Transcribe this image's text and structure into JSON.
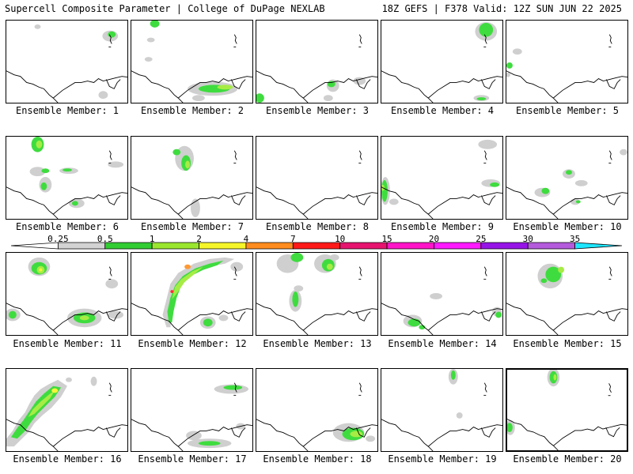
{
  "header": {
    "left": "Supercell Composite Parameter | College of DuPage NEXLAB",
    "right": "18Z GEFS | F378 Valid: 12Z SUN JUN 22 2025"
  },
  "panels": [
    {
      "label": "Ensemble Member: 1"
    },
    {
      "label": "Ensemble Member: 2"
    },
    {
      "label": "Ensemble Member: 3"
    },
    {
      "label": "Ensemble Member: 4"
    },
    {
      "label": "Ensemble Member: 5"
    },
    {
      "label": "Ensemble Member: 6"
    },
    {
      "label": "Ensemble Member: 7"
    },
    {
      "label": "Ensemble Member: 8"
    },
    {
      "label": "Ensemble Member: 9"
    },
    {
      "label": "Ensemble Member: 10"
    },
    {
      "label": "Ensemble Member: 11"
    },
    {
      "label": "Ensemble Member: 12"
    },
    {
      "label": "Ensemble Member: 13"
    },
    {
      "label": "Ensemble Member: 14"
    },
    {
      "label": "Ensemble Member: 15"
    },
    {
      "label": "Ensemble Member: 16"
    },
    {
      "label": "Ensemble Member: 17"
    },
    {
      "label": "Ensemble Member: 18"
    },
    {
      "label": "Ensemble Member: 19"
    },
    {
      "label": "Ensemble Member: 20",
      "selected": true
    }
  ],
  "colorbar": {
    "labels": [
      "0.25",
      "0.5",
      "1",
      "2",
      "4",
      "7",
      "10",
      "15",
      "20",
      "25",
      "30",
      "35"
    ],
    "colors": [
      "#ffffff",
      "#d3d3d3",
      "#32cd32",
      "#9ae62e",
      "#f5f52a",
      "#ff8c1e",
      "#ff1a1a",
      "#e6146e",
      "#ff14c8",
      "#ff1aff",
      "#9614e6",
      "#b45adc",
      "#1ee6ff"
    ]
  },
  "shading_colors": {
    "light": "#cfcfcf",
    "green": "#3fdc3f",
    "lime": "#a6ec44",
    "yellow": "#f5f53a",
    "orange": "#ff9933",
    "red": "#ff3030"
  }
}
